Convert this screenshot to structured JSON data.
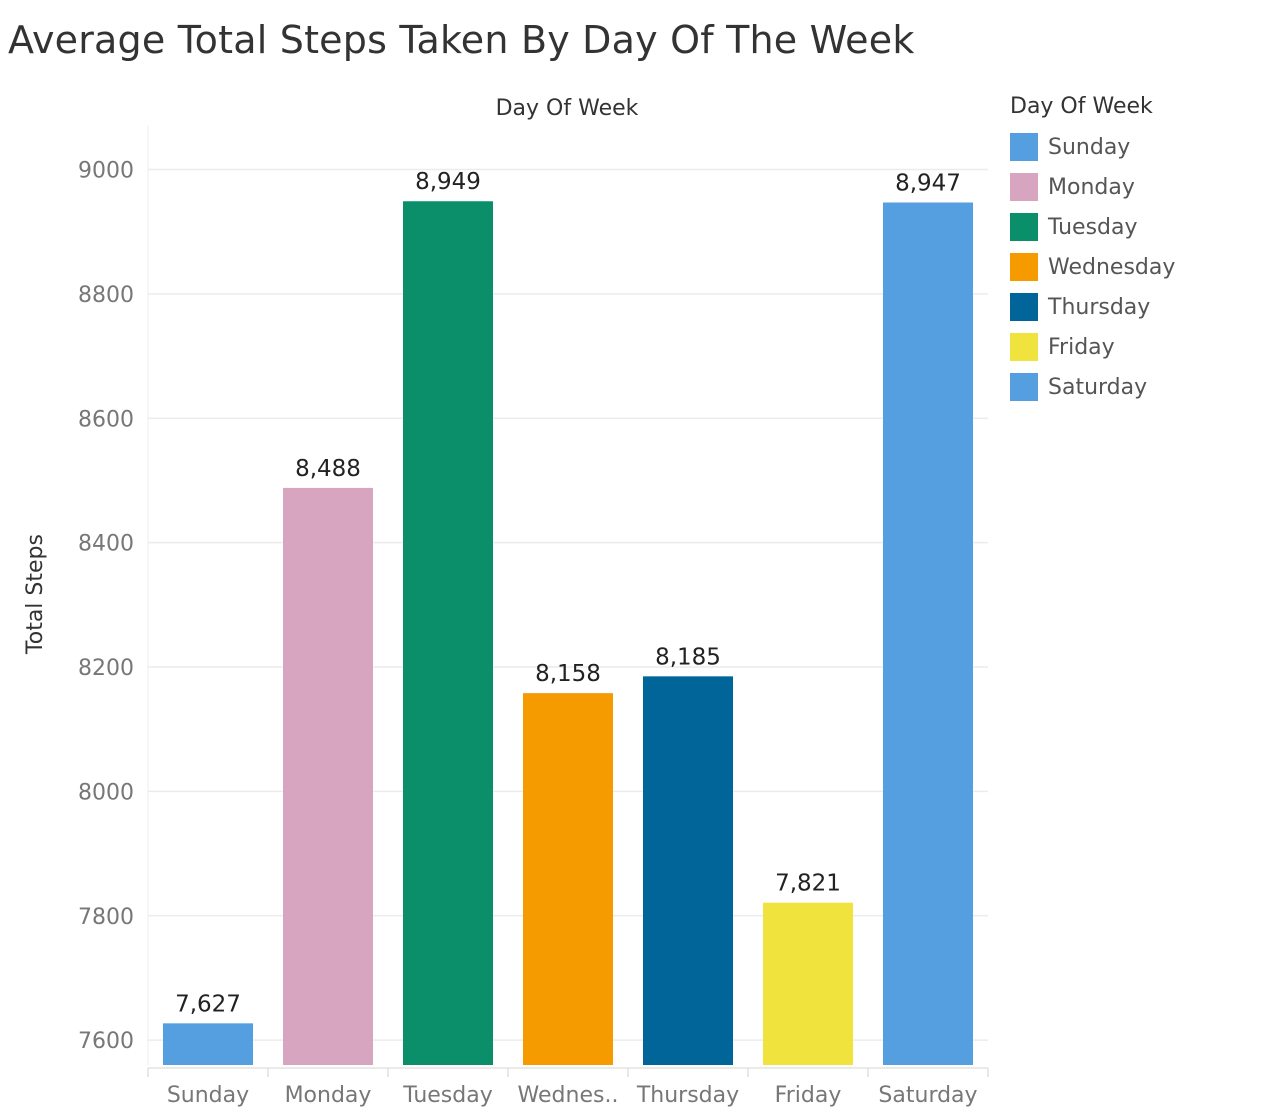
{
  "title": "Average Total Steps Taken By Day Of The Week",
  "chart_data": {
    "type": "bar",
    "title": "Average Total Steps Taken By Day Of The Week",
    "top_axis_label": "Day Of Week",
    "ylabel": "Total Steps",
    "xlabel": "",
    "categories": [
      "Sunday",
      "Monday",
      "Tuesday",
      "Wednesday",
      "Thursday",
      "Friday",
      "Saturday"
    ],
    "category_tick_labels": [
      "Sunday",
      "Monday",
      "Tuesday",
      "Wednes..",
      "Thursday",
      "Friday",
      "Saturday"
    ],
    "values": [
      7627,
      8488,
      8949,
      8158,
      8185,
      7821,
      8947
    ],
    "data_labels": [
      "7,627",
      "8,488",
      "8,949",
      "8,158",
      "8,185",
      "7,821",
      "8,947"
    ],
    "colors": [
      "#559ee0",
      "#d8a5c1",
      "#0b8f6b",
      "#f59b00",
      "#02659a",
      "#f0e33e",
      "#559ee0"
    ],
    "ylim": [
      7560,
      9070
    ],
    "yticks": [
      7600,
      7800,
      8000,
      8200,
      8400,
      8600,
      8800,
      9000
    ],
    "grid": true,
    "legend": {
      "title": "Day Of Week",
      "placement": "right",
      "items": [
        {
          "label": "Sunday",
          "color": "#559ee0"
        },
        {
          "label": "Monday",
          "color": "#d8a5c1"
        },
        {
          "label": "Tuesday",
          "color": "#0b8f6b"
        },
        {
          "label": "Wednesday",
          "color": "#f59b00"
        },
        {
          "label": "Thursday",
          "color": "#02659a"
        },
        {
          "label": "Friday",
          "color": "#f0e33e"
        },
        {
          "label": "Saturday",
          "color": "#559ee0"
        }
      ]
    }
  }
}
